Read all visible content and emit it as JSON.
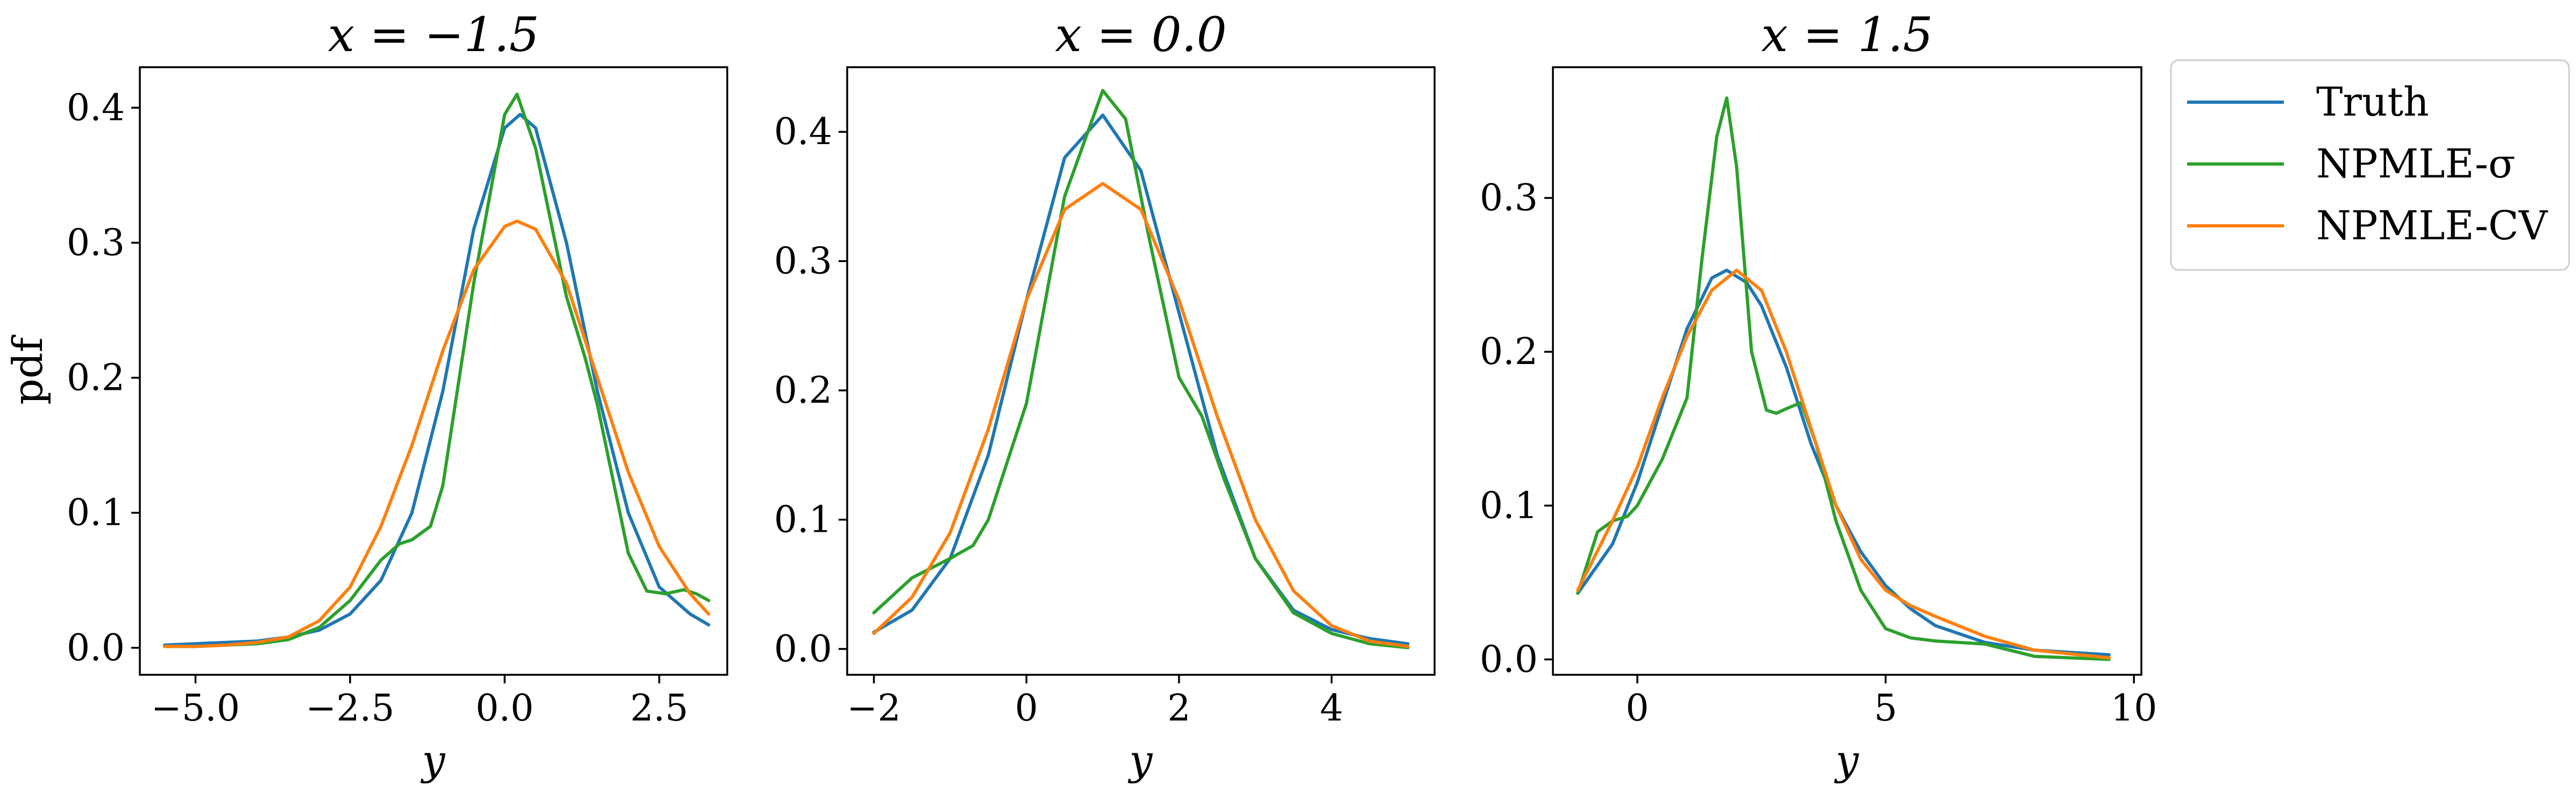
{
  "figure": {
    "ylabel": "pdf",
    "colors": {
      "truth": "#1f77b4",
      "npmle_sigma": "#2ca02c",
      "npmle_cv": "#ff7f0e"
    },
    "legend": {
      "placement": "outside-upper-right",
      "entries": [
        {
          "label": "Truth",
          "color": "#1f77b4"
        },
        {
          "label": "NPMLE-σ",
          "color": "#2ca02c"
        },
        {
          "label": "NPMLE-CV",
          "color": "#ff7f0e"
        }
      ]
    }
  },
  "chart_data": [
    {
      "type": "line",
      "title": "x = −1.5",
      "xlabel": "y",
      "ylabel": "pdf",
      "xlim": [
        -5.9,
        3.6
      ],
      "ylim": [
        -0.02,
        0.43
      ],
      "xticks": [
        -5.0,
        -2.5,
        0.0,
        2.5
      ],
      "xtick_labels": [
        "−5.0",
        "−2.5",
        "0.0",
        "2.5"
      ],
      "yticks": [
        0.0,
        0.1,
        0.2,
        0.3,
        0.4
      ],
      "ytick_labels": [
        "0.0",
        "0.1",
        "0.2",
        "0.3",
        "0.4"
      ],
      "series": [
        {
          "name": "Truth",
          "color": "#1f77b4",
          "x": [
            -5.5,
            -5.0,
            -4.5,
            -4.0,
            -3.5,
            -3.0,
            -2.5,
            -2.0,
            -1.5,
            -1.0,
            -0.5,
            0.0,
            0.25,
            0.5,
            1.0,
            1.5,
            2.0,
            2.5,
            3.0,
            3.3
          ],
          "y": [
            0.002,
            0.003,
            0.004,
            0.005,
            0.008,
            0.013,
            0.025,
            0.05,
            0.1,
            0.19,
            0.31,
            0.385,
            0.395,
            0.385,
            0.3,
            0.19,
            0.1,
            0.045,
            0.025,
            0.017
          ]
        },
        {
          "name": "NPMLE-σ",
          "color": "#2ca02c",
          "x": [
            -5.5,
            -5.0,
            -4.5,
            -4.0,
            -3.5,
            -3.0,
            -2.5,
            -2.0,
            -1.7,
            -1.5,
            -1.2,
            -1.0,
            -0.5,
            0.0,
            0.2,
            0.5,
            1.0,
            1.3,
            1.5,
            2.0,
            2.3,
            2.6,
            2.9,
            3.1,
            3.3
          ],
          "y": [
            0.001,
            0.001,
            0.002,
            0.003,
            0.006,
            0.015,
            0.035,
            0.065,
            0.077,
            0.08,
            0.09,
            0.12,
            0.27,
            0.395,
            0.41,
            0.37,
            0.26,
            0.215,
            0.18,
            0.07,
            0.042,
            0.04,
            0.043,
            0.04,
            0.035
          ]
        },
        {
          "name": "NPMLE-CV",
          "color": "#ff7f0e",
          "x": [
            -5.5,
            -5.0,
            -4.5,
            -4.0,
            -3.5,
            -3.0,
            -2.5,
            -2.0,
            -1.5,
            -1.0,
            -0.5,
            0.0,
            0.2,
            0.5,
            1.0,
            1.5,
            2.0,
            2.5,
            3.0,
            3.3
          ],
          "y": [
            0.001,
            0.001,
            0.002,
            0.004,
            0.008,
            0.02,
            0.045,
            0.09,
            0.15,
            0.22,
            0.28,
            0.312,
            0.316,
            0.31,
            0.27,
            0.2,
            0.13,
            0.075,
            0.04,
            0.025
          ]
        }
      ]
    },
    {
      "type": "line",
      "title": "x = 0.0",
      "xlabel": "y",
      "ylim": [
        -0.02,
        0.45
      ],
      "xlim": [
        -2.35,
        5.35
      ],
      "xticks": [
        -2,
        0,
        2,
        4
      ],
      "xtick_labels": [
        "−2",
        "0",
        "2",
        "4"
      ],
      "yticks": [
        0.0,
        0.1,
        0.2,
        0.3,
        0.4
      ],
      "ytick_labels": [
        "0.0",
        "0.1",
        "0.2",
        "0.3",
        "0.4"
      ],
      "series": [
        {
          "name": "Truth",
          "color": "#1f77b4",
          "x": [
            -2.0,
            -1.5,
            -1.0,
            -0.5,
            0.0,
            0.5,
            1.0,
            1.5,
            2.0,
            2.5,
            3.0,
            3.5,
            4.0,
            4.5,
            5.0
          ],
          "y": [
            0.013,
            0.03,
            0.07,
            0.15,
            0.27,
            0.38,
            0.413,
            0.37,
            0.26,
            0.15,
            0.07,
            0.03,
            0.015,
            0.008,
            0.004
          ]
        },
        {
          "name": "NPMLE-σ",
          "color": "#2ca02c",
          "x": [
            -2.0,
            -1.5,
            -1.0,
            -0.7,
            -0.5,
            0.0,
            0.5,
            1.0,
            1.3,
            1.6,
            2.0,
            2.3,
            2.6,
            3.0,
            3.5,
            4.0,
            4.5,
            5.0
          ],
          "y": [
            0.028,
            0.055,
            0.07,
            0.08,
            0.1,
            0.19,
            0.35,
            0.432,
            0.41,
            0.32,
            0.21,
            0.18,
            0.13,
            0.07,
            0.028,
            0.012,
            0.004,
            0.001
          ]
        },
        {
          "name": "NPMLE-CV",
          "color": "#ff7f0e",
          "x": [
            -2.0,
            -1.5,
            -1.0,
            -0.5,
            0.0,
            0.5,
            1.0,
            1.5,
            2.0,
            2.5,
            3.0,
            3.5,
            4.0,
            4.5,
            5.0
          ],
          "y": [
            0.012,
            0.04,
            0.09,
            0.17,
            0.27,
            0.34,
            0.36,
            0.34,
            0.27,
            0.18,
            0.1,
            0.045,
            0.018,
            0.006,
            0.002
          ]
        }
      ]
    },
    {
      "type": "line",
      "title": "x = 1.5",
      "xlabel": "y",
      "ylim": [
        -0.01,
        0.385
      ],
      "xlim": [
        -1.7,
        10.15
      ],
      "xticks": [
        0,
        5,
        10
      ],
      "xtick_labels": [
        "0",
        "5",
        "10"
      ],
      "yticks": [
        0.0,
        0.1,
        0.2,
        0.3
      ],
      "ytick_labels": [
        "0.0",
        "0.1",
        "0.2",
        "0.3"
      ],
      "series": [
        {
          "name": "Truth",
          "color": "#1f77b4",
          "x": [
            -1.2,
            -0.5,
            0.0,
            0.5,
            1.0,
            1.5,
            1.8,
            2.2,
            2.5,
            3.0,
            3.5,
            4.0,
            4.5,
            5.0,
            5.5,
            6.0,
            7.0,
            8.0,
            9.5
          ],
          "y": [
            0.043,
            0.075,
            0.115,
            0.165,
            0.215,
            0.248,
            0.253,
            0.245,
            0.23,
            0.19,
            0.14,
            0.1,
            0.07,
            0.048,
            0.033,
            0.022,
            0.011,
            0.006,
            0.003
          ]
        },
        {
          "name": "NPMLE-σ",
          "color": "#2ca02c",
          "x": [
            -1.2,
            -0.8,
            -0.5,
            -0.2,
            0.0,
            0.5,
            1.0,
            1.3,
            1.6,
            1.8,
            2.0,
            2.3,
            2.6,
            2.8,
            3.0,
            3.3,
            3.6,
            4.0,
            4.5,
            5.0,
            5.5,
            6.0,
            7.0,
            8.0,
            9.5
          ],
          "y": [
            0.043,
            0.083,
            0.09,
            0.093,
            0.1,
            0.13,
            0.17,
            0.26,
            0.34,
            0.365,
            0.32,
            0.2,
            0.162,
            0.16,
            0.163,
            0.167,
            0.14,
            0.09,
            0.045,
            0.02,
            0.014,
            0.012,
            0.01,
            0.002,
            0.0
          ]
        },
        {
          "name": "NPMLE-CV",
          "color": "#ff7f0e",
          "x": [
            -1.2,
            -0.5,
            0.0,
            0.5,
            1.0,
            1.5,
            2.0,
            2.5,
            3.0,
            3.5,
            4.0,
            4.5,
            5.0,
            5.5,
            6.0,
            7.0,
            8.0,
            9.5
          ],
          "y": [
            0.045,
            0.09,
            0.125,
            0.17,
            0.21,
            0.24,
            0.253,
            0.24,
            0.2,
            0.15,
            0.1,
            0.065,
            0.045,
            0.035,
            0.028,
            0.015,
            0.006,
            0.001
          ]
        }
      ]
    }
  ]
}
